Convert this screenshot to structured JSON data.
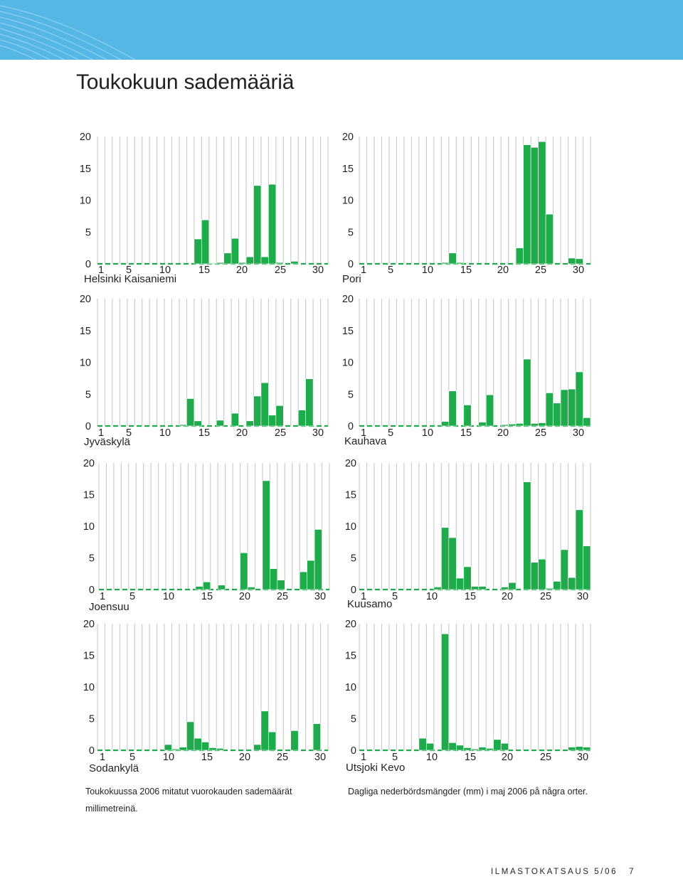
{
  "page": {
    "title": "Toukokuun sademääriä",
    "caption_fi": "Toukokuussa 2006 mitatut vuorokauden sademäärät millimetreinä.",
    "caption_sv": "Dagliga nederbördsmängder (mm) i maj 2006 på några orter.",
    "footer": "ILMASTOKATSAUS 5/06",
    "page_number": "7"
  },
  "colors": {
    "banner": "#55b7e6",
    "bar": "#1faa4b",
    "bar_edge": "#ffffff",
    "grid": "#c8c8c8",
    "text": "#231f20"
  },
  "chart_data": [
    {
      "type": "bar",
      "station": "Helsinki Kaisaniemi",
      "x": [
        1,
        2,
        3,
        4,
        5,
        6,
        7,
        8,
        9,
        10,
        11,
        12,
        13,
        14,
        15,
        16,
        17,
        18,
        19,
        20,
        21,
        22,
        23,
        24,
        25,
        26,
        27,
        28,
        29,
        30,
        31
      ],
      "x_tick_labels": [
        "1",
        "5",
        "10",
        "15",
        "20",
        "25",
        "30"
      ],
      "y_tick_labels": [
        "0",
        "5",
        "10",
        "15",
        "20"
      ],
      "ylim": [
        0,
        20
      ],
      "values": [
        0,
        0,
        0,
        0,
        0,
        0,
        0,
        0,
        0,
        0,
        0,
        0,
        0,
        3.9,
        6.9,
        0.1,
        0.2,
        1.7,
        4.0,
        0.2,
        1.1,
        12.3,
        1.1,
        12.5,
        0.2,
        0,
        0.4,
        0,
        0,
        0,
        0
      ]
    },
    {
      "type": "bar",
      "station": "Pori",
      "x": [
        1,
        2,
        3,
        4,
        5,
        6,
        7,
        8,
        9,
        10,
        11,
        12,
        13,
        14,
        15,
        16,
        17,
        18,
        19,
        20,
        21,
        22,
        23,
        24,
        25,
        26,
        27,
        28,
        29,
        30,
        31
      ],
      "x_tick_labels": [
        "1",
        "5",
        "10",
        "15",
        "20",
        "25",
        "30"
      ],
      "y_tick_labels": [
        "0",
        "5",
        "10",
        "15",
        "20"
      ],
      "ylim": [
        0,
        20
      ],
      "values": [
        0,
        0,
        0,
        0,
        0,
        0,
        0,
        0,
        0,
        0,
        0,
        0.2,
        1.7,
        0.2,
        0,
        0,
        0,
        0,
        0,
        0,
        0,
        2.5,
        18.7,
        18.3,
        19.2,
        7.8,
        0,
        0,
        0.9,
        0.8,
        0
      ]
    },
    {
      "type": "bar",
      "station": "Jyväskylä",
      "x": [
        1,
        2,
        3,
        4,
        5,
        6,
        7,
        8,
        9,
        10,
        11,
        12,
        13,
        14,
        15,
        16,
        17,
        18,
        19,
        20,
        21,
        22,
        23,
        24,
        25,
        26,
        27,
        28,
        29,
        30,
        31
      ],
      "x_tick_labels": [
        "1",
        "5",
        "10",
        "15",
        "20",
        "25",
        "30"
      ],
      "y_tick_labels": [
        "0",
        "5",
        "10",
        "15",
        "20"
      ],
      "ylim": [
        0,
        20
      ],
      "values": [
        0,
        0,
        0,
        0,
        0,
        0,
        0,
        0,
        0,
        0,
        0,
        0.2,
        4.3,
        0.8,
        0,
        0,
        0.9,
        0,
        2.0,
        0,
        0.8,
        4.7,
        6.8,
        1.7,
        3.2,
        0,
        0,
        2.5,
        7.4,
        0,
        0
      ]
    },
    {
      "type": "bar",
      "station": "Kauhava",
      "x": [
        1,
        2,
        3,
        4,
        5,
        6,
        7,
        8,
        9,
        10,
        11,
        12,
        13,
        14,
        15,
        16,
        17,
        18,
        19,
        20,
        21,
        22,
        23,
        24,
        25,
        26,
        27,
        28,
        29,
        30,
        31
      ],
      "x_tick_labels": [
        "1",
        "5",
        "10",
        "15",
        "20",
        "25",
        "30"
      ],
      "y_tick_labels": [
        "0",
        "5",
        "10",
        "15",
        "20"
      ],
      "ylim": [
        0,
        20
      ],
      "values": [
        0,
        0,
        0,
        0,
        0,
        0,
        0,
        0,
        0,
        0,
        0,
        0.7,
        5.5,
        0,
        3.3,
        0,
        0.6,
        4.9,
        0,
        0.2,
        0.3,
        0.4,
        10.5,
        0.4,
        0.5,
        5.2,
        3.6,
        5.7,
        5.8,
        8.5,
        1.3
      ]
    },
    {
      "type": "bar",
      "station": "Joensuu",
      "x": [
        1,
        2,
        3,
        4,
        5,
        6,
        7,
        8,
        9,
        10,
        11,
        12,
        13,
        14,
        15,
        16,
        17,
        18,
        19,
        20,
        21,
        22,
        23,
        24,
        25,
        26,
        27,
        28,
        29,
        30,
        31
      ],
      "x_tick_labels": [
        "1",
        "5",
        "10",
        "15",
        "20",
        "25",
        "30"
      ],
      "y_tick_labels": [
        "0",
        "5",
        "10",
        "15",
        "20"
      ],
      "ylim": [
        0,
        20
      ],
      "values": [
        0,
        0,
        0,
        0,
        0,
        0,
        0,
        0,
        0,
        0,
        0,
        0,
        0,
        0.5,
        1.2,
        0,
        0.7,
        0,
        0,
        5.8,
        0.4,
        0,
        17.2,
        3.3,
        1.5,
        0,
        0,
        2.8,
        4.6,
        9.5,
        0
      ]
    },
    {
      "type": "bar",
      "station": "Kuusamo",
      "x": [
        1,
        2,
        3,
        4,
        5,
        6,
        7,
        8,
        9,
        10,
        11,
        12,
        13,
        14,
        15,
        16,
        17,
        18,
        19,
        20,
        21,
        22,
        23,
        24,
        25,
        26,
        27,
        28,
        29,
        30,
        31
      ],
      "x_tick_labels": [
        "1",
        "5",
        "10",
        "15",
        "20",
        "25",
        "30"
      ],
      "y_tick_labels": [
        "0",
        "5",
        "10",
        "15",
        "20"
      ],
      "ylim": [
        0,
        20
      ],
      "values": [
        0,
        0,
        0,
        0,
        0,
        0,
        0,
        0,
        0,
        0,
        0.4,
        9.8,
        8.2,
        1.8,
        3.6,
        0.5,
        0.5,
        0,
        0,
        0.4,
        1.1,
        0,
        17.0,
        4.3,
        4.8,
        0.2,
        1.3,
        6.3,
        1.9,
        12.6,
        6.9
      ]
    },
    {
      "type": "bar",
      "station": "Sodankylä",
      "x": [
        1,
        2,
        3,
        4,
        5,
        6,
        7,
        8,
        9,
        10,
        11,
        12,
        13,
        14,
        15,
        16,
        17,
        18,
        19,
        20,
        21,
        22,
        23,
        24,
        25,
        26,
        27,
        28,
        29,
        30,
        31
      ],
      "x_tick_labels": [
        "1",
        "5",
        "10",
        "15",
        "20",
        "25",
        "30"
      ],
      "y_tick_labels": [
        "0",
        "5",
        "10",
        "15",
        "20"
      ],
      "ylim": [
        0,
        20
      ],
      "values": [
        0,
        0,
        0,
        0,
        0,
        0,
        0,
        0,
        0,
        0.9,
        0.2,
        0.5,
        4.5,
        1.9,
        1.3,
        0.4,
        0.3,
        0,
        0,
        0,
        0,
        0.9,
        6.2,
        2.9,
        0,
        0,
        3.1,
        0,
        0,
        4.2,
        0
      ]
    },
    {
      "type": "bar",
      "station": "Utsjoki Kevo",
      "x": [
        1,
        2,
        3,
        4,
        5,
        6,
        7,
        8,
        9,
        10,
        11,
        12,
        13,
        14,
        15,
        16,
        17,
        18,
        19,
        20,
        21,
        22,
        23,
        24,
        25,
        26,
        27,
        28,
        29,
        30,
        31
      ],
      "x_tick_labels": [
        "1",
        "5",
        "10",
        "15",
        "20",
        "25",
        "30"
      ],
      "y_tick_labels": [
        "0",
        "5",
        "10",
        "15",
        "20"
      ],
      "ylim": [
        0,
        20
      ],
      "values": [
        0,
        0,
        0,
        0,
        0,
        0,
        0,
        0,
        1.9,
        1.1,
        0,
        18.4,
        1.2,
        0.8,
        0.4,
        0.2,
        0.5,
        0.3,
        1.7,
        1.1,
        0,
        0,
        0,
        0,
        0,
        0,
        0,
        0,
        0.5,
        0.6,
        0.5
      ]
    }
  ]
}
